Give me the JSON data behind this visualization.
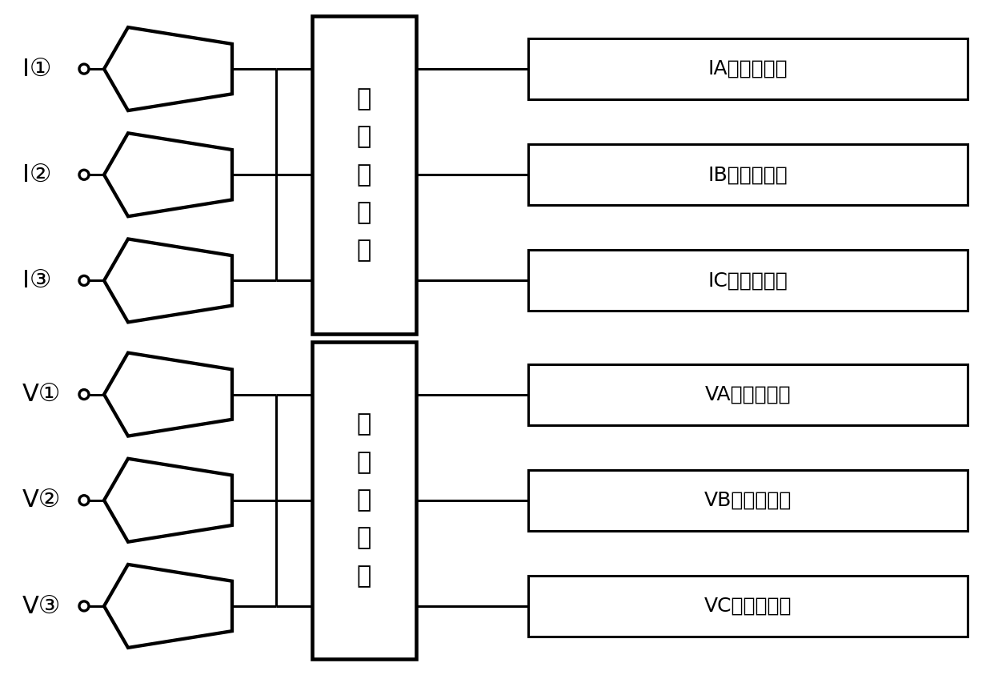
{
  "bg_color": "#ffffff",
  "line_color": "#000000",
  "lw": 2.2,
  "fig_w": 12.37,
  "fig_h": 8.43,
  "dpi": 100,
  "top_channels": [
    "I①",
    "I②",
    "I③"
  ],
  "bot_channels": [
    "V①",
    "V②",
    "V③"
  ],
  "top_out_labels": [
    "IA相计算路径",
    "IB相计算路径",
    "IC相计算路径"
  ],
  "bot_out_labels": [
    "VA相计算路径",
    "VB相计算路径",
    "VC相计算路径"
  ],
  "mux_label": "多\n路\n选\n择\n器",
  "label_fontsize": 22,
  "mux_fontsize": 22,
  "out_fontsize": 18
}
